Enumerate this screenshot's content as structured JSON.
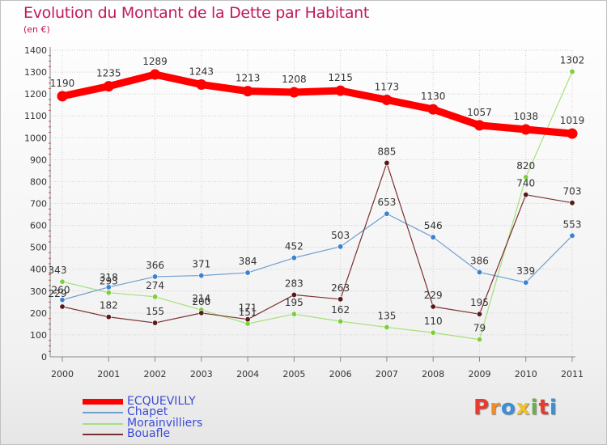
{
  "title": "Evolution du Montant de la Dette par Habitant",
  "subtitle": "(en €)",
  "logo": {
    "text": "Proxiti",
    "colors": [
      "#e63b2e",
      "#f28c28",
      "#3a8fd9",
      "#f2c028",
      "#6ab04c",
      "#e63b2e",
      "#3a8fd9"
    ]
  },
  "chart_data": {
    "type": "line",
    "x": [
      "2000",
      "2001",
      "2002",
      "2003",
      "2004",
      "2005",
      "2006",
      "2007",
      "2008",
      "2009",
      "2010",
      "2011"
    ],
    "ylim": [
      0,
      1400
    ],
    "yticks": [
      "0",
      "100",
      "200",
      "300",
      "400",
      "500",
      "600",
      "700",
      "800",
      "900",
      "1000",
      "1100",
      "1200",
      "1300",
      "1400"
    ],
    "grid": true,
    "legend_position": "bottom-left",
    "series": [
      {
        "name": "ECQUEVILLY",
        "color": "#ff0000",
        "marker": "#ff0000",
        "values": [
          1190,
          1235,
          1289,
          1243,
          1213,
          1208,
          1215,
          1173,
          1130,
          1057,
          1038,
          1019
        ],
        "labels": [
          "1190",
          "1235",
          "1289",
          "1243",
          "1213",
          "1208",
          "1215",
          "1173",
          "1130",
          "1057",
          "1038",
          "1019"
        ]
      },
      {
        "name": "Chapet",
        "color": "#6f9fcf",
        "marker": "#3a82d0",
        "values": [
          260,
          318,
          366,
          371,
          384,
          452,
          503,
          653,
          546,
          386,
          339,
          553
        ],
        "labels": [
          "260",
          "318",
          "366",
          "371",
          "384",
          "452",
          "503",
          "653",
          "546",
          "386",
          "339",
          "553"
        ]
      },
      {
        "name": "Morainvilliers",
        "color": "#a6e07a",
        "marker": "#7ccf3c",
        "values": [
          343,
          293,
          274,
          214,
          151,
          195,
          162,
          135,
          110,
          79,
          820,
          1302
        ],
        "labels": [
          "343",
          "293",
          "274",
          "214",
          "151",
          "195",
          "162",
          "135",
          "110",
          "79",
          "820",
          "1302"
        ]
      },
      {
        "name": "Bouafle",
        "color": "#7a3030",
        "marker": "#5a1818",
        "values": [
          229,
          182,
          155,
          200,
          171,
          283,
          263,
          885,
          229,
          195,
          740,
          703
        ],
        "labels": [
          "229",
          "182",
          "155",
          "200",
          "171",
          "283",
          "263",
          "885",
          "229",
          "195",
          "740",
          "703"
        ]
      }
    ]
  }
}
